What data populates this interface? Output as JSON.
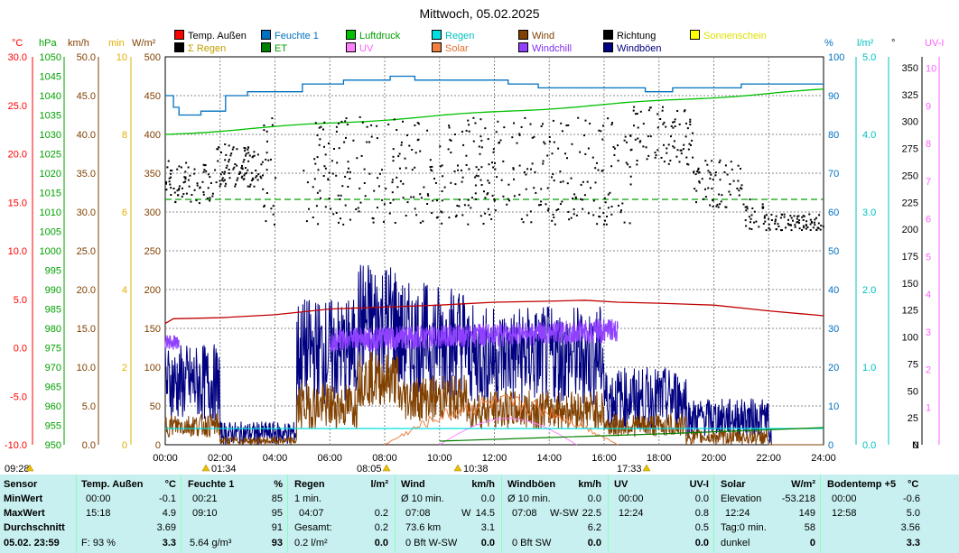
{
  "title": "Mittwoch, 05.02.2025",
  "legend": [
    {
      "label": "Temp. Außen",
      "color": "#ff0000",
      "text_color": "#000000"
    },
    {
      "label": "Feuchte 1",
      "color": "#0070c0",
      "text_color": "#0070c0"
    },
    {
      "label": "Luftdruck",
      "color": "#00c000",
      "text_color": "#00a000"
    },
    {
      "label": "Regen",
      "color": "#00e0e0",
      "text_color": "#00c0c0"
    },
    {
      "label": "Wind",
      "color": "#804000",
      "text_color": "#804000"
    },
    {
      "label": "Richtung",
      "color": "#000000",
      "text_color": "#000000"
    },
    {
      "label": "Sonnenschein",
      "color": "#ffff00",
      "text_color": "#e0e000"
    },
    {
      "label": "Σ Regen",
      "color": "#000000",
      "text_color": "#c0a000"
    },
    {
      "label": "ET",
      "color": "#008000",
      "text_color": "#00a000"
    },
    {
      "label": "UV",
      "color": "#ff80ff",
      "text_color": "#ff60ff"
    },
    {
      "label": "Solar",
      "color": "#f08040",
      "text_color": "#e07030"
    },
    {
      "label": "Windchill",
      "color": "#9040ff",
      "text_color": "#8030f0"
    },
    {
      "label": "Windböen",
      "color": "#000080",
      "text_color": "#000080"
    }
  ],
  "axis_units": {
    "temp": "°C",
    "press": "hPa",
    "wind": "km/h",
    "min": "min",
    "solar": "W/m²",
    "hum": "%",
    "rain": "l/m²",
    "dir": "°",
    "uvi": "UV-I"
  },
  "axes": {
    "temp": [
      "30.0",
      "25.0",
      "20.0",
      "15.0",
      "10.0",
      "5.0",
      "0.0",
      "-5.0",
      "-10.0"
    ],
    "press": [
      "1050",
      "1045",
      "1040",
      "1035",
      "1030",
      "1025",
      "1020",
      "1015",
      "1010",
      "1005",
      "1000",
      "995",
      "990",
      "985",
      "980",
      "975",
      "970",
      "965",
      "960",
      "955",
      "950"
    ],
    "wind": [
      "50.0",
      "45.0",
      "40.0",
      "35.0",
      "30.0",
      "25.0",
      "20.0",
      "15.0",
      "10.0",
      "5.0",
      "0.0"
    ],
    "min": [
      "10",
      "8",
      "6",
      "4",
      "2",
      "0"
    ],
    "solar": [
      "500",
      "450",
      "400",
      "350",
      "300",
      "250",
      "200",
      "150",
      "100",
      "50",
      "0"
    ],
    "hum": [
      "100",
      "90",
      "80",
      "70",
      "60",
      "50",
      "40",
      "30",
      "20",
      "10",
      "0"
    ],
    "rain": [
      "5.0",
      "4.0",
      "3.0",
      "2.0",
      "1.0",
      "0.0"
    ],
    "dir": [
      "350",
      "325",
      "300",
      "275",
      "250",
      "225",
      "200",
      "175",
      "150",
      "125",
      "100",
      "75",
      "50",
      "25",
      "0",
      "N"
    ],
    "uvi": [
      "10",
      "9",
      "8",
      "7",
      "6",
      "5",
      "4",
      "3",
      "2",
      "1"
    ],
    "time": [
      "00:00",
      "02:00",
      "04:00",
      "06:00",
      "08:00",
      "10:00",
      "12:00",
      "14:00",
      "16:00",
      "18:00",
      "20:00",
      "22:00",
      "24:00"
    ]
  },
  "sun_events": {
    "sunrise_total": "09:28",
    "sunrise_a": "01:34",
    "sunrise": "08:05",
    "culmination": "10:38",
    "sunset": "17:33"
  },
  "table": {
    "rows": [
      "Sensor",
      "MinWert",
      "MaxWert",
      "Durchschnitt"
    ],
    "footer_date": "05.02. 23:59",
    "temp": {
      "head": "Temp. Außen",
      "unit": "°C",
      "min_t": "00:00",
      "min": "-0.1",
      "max_t": "15:18",
      "max": "4.9",
      "avg": "3.69",
      "foot_l": "F: 93 %",
      "foot": "3.3"
    },
    "hum": {
      "head": "Feuchte 1",
      "unit": "%",
      "min_t": "00:21",
      "min": "85",
      "max_t": "09:10",
      "max": "95",
      "avg": "91",
      "foot_l": "5.64 g/m³",
      "foot": "93"
    },
    "rain": {
      "head": "Regen",
      "unit": "l/m²",
      "r1_l": "1 min.",
      "r1": "",
      "r2_l": "04:07",
      "r2": "0.2",
      "r3_l": "Gesamt:",
      "r3": "0.2",
      "foot_l": "0.2 l/m²",
      "foot": "0.0"
    },
    "wind": {
      "head": "Wind",
      "unit": "km/h",
      "r1_l": "Ø 10 min.",
      "r1": "0.0",
      "r2_l": "07:08",
      "r2_m": "W",
      "r2": "14.5",
      "r3_l": "73.6 km",
      "r3": "3.1",
      "foot_l": "0 Bft W-SW",
      "foot": "0.0"
    },
    "gust": {
      "head": "Windböen",
      "unit": "km/h",
      "r1_l": "Ø 10 min.",
      "r1": "0.0",
      "r2_l": "07:08",
      "r2_m": "W-SW",
      "r2": "22.5",
      "r3": "6.2",
      "foot_l": "0 Bft SW",
      "foot": "0.0"
    },
    "uv": {
      "head": "UV",
      "unit": "UV-I",
      "r1_l": "00:00",
      "r1": "0.0",
      "r2_l": "12:24",
      "r2": "0.8",
      "r3": "0.5",
      "foot": "0.0"
    },
    "solar": {
      "head": "Solar",
      "unit": "W/m²",
      "r1_l": "Elevation",
      "r1": "-53.218",
      "r2_l": "12:24",
      "r2": "149",
      "r3_l": "Tag:0 min.",
      "r3": "58",
      "foot_l": "dunkel",
      "foot": "0"
    },
    "soil": {
      "head": "Bodentemp +5",
      "unit": "°C",
      "r1_l": "00:00",
      "r1": "-0.6",
      "r2_l": "12:58",
      "r2": "5.0",
      "r3": "3.56",
      "foot": "3.3"
    }
  }
}
